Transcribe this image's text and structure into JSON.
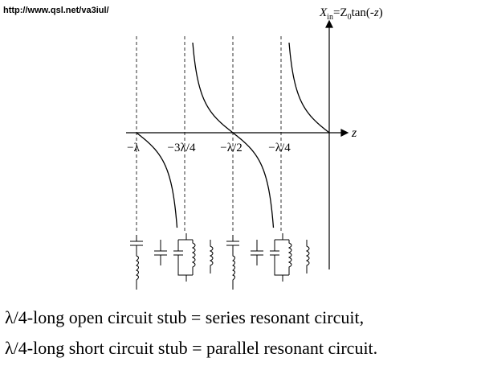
{
  "header": {
    "url": "http://www.qsl.net/va3iul/"
  },
  "axis": {
    "y_label": [
      "X",
      "in",
      "=Z",
      "0",
      "tan(-",
      "z",
      ")"
    ],
    "x_label": "z",
    "ticks": [
      "−λ",
      "−3λ/4",
      "−λ/2",
      "−λ/4"
    ]
  },
  "captions": [
    "λ/4-long open circuit stub = series resonant circuit,",
    "λ/4-long short circuit stub = parallel resonant circuit."
  ]
}
